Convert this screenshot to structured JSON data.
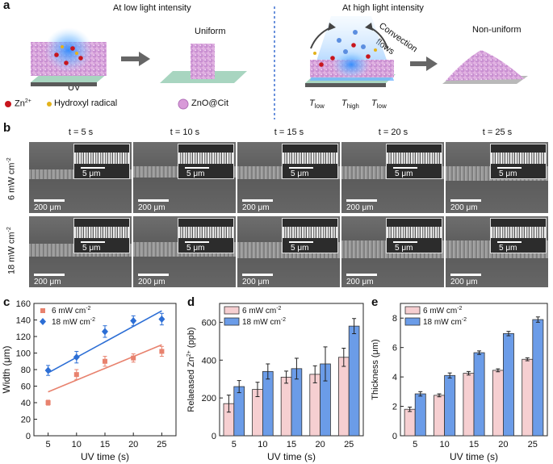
{
  "panel_a": {
    "label": "a",
    "low_title": "At low light intensity",
    "high_title": "At high light intensity",
    "uniform": "Uniform",
    "non_uniform": "Non-uniform",
    "uv": "UV",
    "convection": "Convection",
    "flows": "flows",
    "legend": {
      "zn": "Zn",
      "zn_sup": "2+",
      "hydroxyl": "Hydroxyl radical",
      "znocit": "ZnO@Cit"
    },
    "temps": {
      "t": "T",
      "low": "low",
      "high": "high"
    },
    "colors": {
      "zn": "#c8161d",
      "hydroxyl": "#e3b21a",
      "znocit": "#d89ad8",
      "substrate": "#a8d5c0",
      "uv": "#3aa0ff"
    }
  },
  "panel_b": {
    "label": "b",
    "col_titles": [
      "t = 5 s",
      "t = 10 s",
      "t = 15 s",
      "t = 20 s",
      "t = 25 s"
    ],
    "row_labels": [
      "6 mW cm",
      "18 mW cm"
    ],
    "row_sup": "-2",
    "scale_main": "200 μm",
    "scale_inset": "5 μm"
  },
  "panel_c": {
    "label": "c"
  },
  "panel_d": {
    "label": "d"
  },
  "panel_e": {
    "label": "e"
  },
  "chart_data": [
    {
      "type": "scatter",
      "panel": "c",
      "xlabel": "UV time (s)",
      "ylabel": "Width (μm)",
      "xlim": [
        2.5,
        27.5
      ],
      "ylim": [
        0,
        160
      ],
      "xticks": [
        5,
        10,
        15,
        20,
        25
      ],
      "yticks": [
        0,
        20,
        40,
        60,
        80,
        100,
        120,
        140,
        160
      ],
      "x": [
        5,
        10,
        15,
        20,
        25
      ],
      "series": [
        {
          "name": "6 mW cm",
          "sup": "-2",
          "color": "#e8826e",
          "marker": "square",
          "values": [
            40,
            74,
            90,
            94,
            102
          ],
          "err": [
            3,
            6,
            6,
            5,
            6
          ],
          "fit": [
            53,
            67,
            82,
            96,
            110
          ]
        },
        {
          "name": "18 mW cm",
          "sup": "-2",
          "color": "#2c6ed5",
          "marker": "diamond",
          "values": [
            79,
            95,
            126,
            139,
            141
          ],
          "err": [
            6,
            7,
            7,
            6,
            7
          ],
          "fit": [
            76,
            95,
            114,
            132,
            151
          ]
        }
      ]
    },
    {
      "type": "bar",
      "panel": "d",
      "xlabel": "UV time (s)",
      "ylabel": "Relaeased Zn",
      "ylabel_sup": "2+",
      "ylabel_unit": " (ppb)",
      "categories": [
        "5",
        "10",
        "15",
        "20",
        "25"
      ],
      "ylim": [
        0,
        700
      ],
      "yticks": [
        0,
        200,
        400,
        600
      ],
      "series": [
        {
          "name": "6 mW cm",
          "sup": "-2",
          "color": "#f6cfd1",
          "values": [
            170,
            245,
            310,
            325,
            415
          ],
          "err": [
            45,
            38,
            32,
            45,
            48
          ]
        },
        {
          "name": "18 mW cm",
          "sup": "-2",
          "color": "#6b9ce8",
          "values": [
            260,
            340,
            355,
            380,
            580
          ],
          "err": [
            32,
            40,
            55,
            90,
            40
          ]
        }
      ]
    },
    {
      "type": "bar",
      "panel": "e",
      "xlabel": "UV time (s)",
      "ylabel": "Thickness (μm)",
      "categories": [
        "5",
        "10",
        "15",
        "20",
        "25"
      ],
      "ylim": [
        0,
        9
      ],
      "yticks": [
        0,
        2,
        4,
        6,
        8
      ],
      "series": [
        {
          "name": "6 mW cm",
          "sup": "-2",
          "color": "#f6cfd1",
          "values": [
            1.8,
            2.75,
            4.25,
            4.45,
            5.2
          ],
          "err": [
            0.15,
            0.1,
            0.12,
            0.1,
            0.1
          ]
        },
        {
          "name": "18 mW cm",
          "sup": "-2",
          "color": "#6b9ce8",
          "values": [
            2.85,
            4.1,
            5.65,
            6.95,
            7.9
          ],
          "err": [
            0.15,
            0.17,
            0.12,
            0.15,
            0.18
          ]
        }
      ]
    }
  ]
}
